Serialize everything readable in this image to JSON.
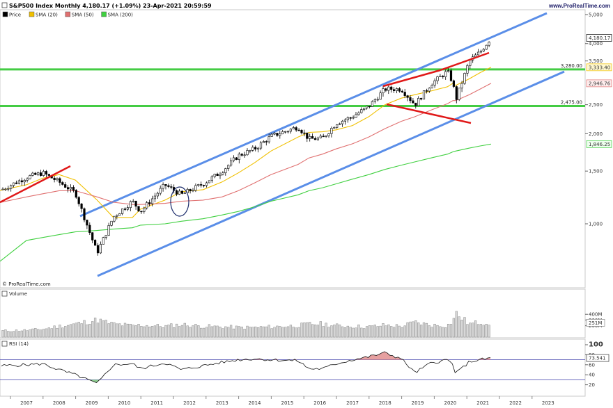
{
  "header": {
    "title": "S&P500 Index Monthly 4,180.17 (+1.09%) 23-Apr-2021 20:59:59",
    "brand": "www.ProRealTime.com",
    "watermark": "© ProRealTime.com"
  },
  "legend": [
    {
      "label": "Price",
      "color": "#000000"
    },
    {
      "label": "SMA (20)",
      "color": "#f0c000"
    },
    {
      "label": "SMA (50)",
      "color": "#e07070"
    },
    {
      "label": "SMA (200)",
      "color": "#40d040"
    }
  ],
  "price_axis": {
    "ticks": [
      {
        "label": "5,000",
        "value": 5000
      },
      {
        "label": "4,000",
        "value": 4000
      },
      {
        "label": "3,500",
        "value": 3500
      },
      {
        "label": "2,500",
        "value": 2500
      },
      {
        "label": "2,000",
        "value": 2000
      },
      {
        "label": "1,500",
        "value": 1500
      },
      {
        "label": "1,000",
        "value": 1000
      }
    ],
    "badges": [
      {
        "label": "4,180.17",
        "value": 4180.17,
        "bg": "#ffffff",
        "fg": "#000000",
        "border": "#000000"
      },
      {
        "label": "3,333.40",
        "value": 3333.4,
        "bg": "#fff8d0",
        "fg": "#b09000",
        "border": "#f0c000"
      },
      {
        "label": "2,946.76",
        "value": 2946.76,
        "bg": "#ffeeee",
        "fg": "#c04040",
        "border": "#e07070"
      },
      {
        "label": "1,846.25",
        "value": 1846.25,
        "bg": "#eeffee",
        "fg": "#209020",
        "border": "#40d040"
      }
    ],
    "levels": [
      {
        "label": "3,280.00",
        "value": 3280
      },
      {
        "label": "2,475.00",
        "value": 2475
      }
    ]
  },
  "volume_panel": {
    "title": "Volume",
    "ticks": [
      "400M",
      "300M",
      "200M"
    ],
    "last_label": "251M"
  },
  "rsi_panel": {
    "title": "RSI (14)",
    "ticks": [
      "100",
      "80",
      "60",
      "40",
      "20"
    ],
    "last_label": "73.541",
    "upper": 70,
    "lower": 30
  },
  "time_axis": [
    "2007",
    "2008",
    "2009",
    "2010",
    "2011",
    "2012",
    "2013",
    "2014",
    "2015",
    "2016",
    "2017",
    "2018",
    "2019",
    "2020",
    "2021",
    "2022",
    "2023"
  ],
  "chart_data": {
    "type": "line",
    "title": "S&P500 Index Monthly 4,180.17 (+1.09%) 23-Apr-2021 20:59:59",
    "scale": "log",
    "x": [
      "2007-01",
      "2007-07",
      "2008-01",
      "2008-07",
      "2009-03",
      "2009-09",
      "2010-04",
      "2010-07",
      "2011-04",
      "2011-10",
      "2012-06",
      "2013-01",
      "2013-07",
      "2014-01",
      "2014-07",
      "2015-05",
      "2015-09",
      "2016-02",
      "2016-07",
      "2017-01",
      "2017-07",
      "2018-01",
      "2018-07",
      "2018-12",
      "2019-06",
      "2019-12",
      "2020-02",
      "2020-03",
      "2020-08",
      "2020-12",
      "2021-04"
    ],
    "series": [
      {
        "name": "Price",
        "values": [
          1430,
          1480,
          1380,
          1270,
          800,
          1055,
          1190,
          1100,
          1350,
          1250,
          1360,
          1500,
          1690,
          1780,
          1960,
          2110,
          1920,
          1930,
          2170,
          2280,
          2470,
          2820,
          2820,
          2500,
          2940,
          3230,
          2950,
          2580,
          3500,
          3750,
          4180
        ]
      },
      {
        "name": "SMA (20)",
        "values": [
          1350,
          1420,
          1460,
          1400,
          1200,
          1050,
          1050,
          1120,
          1200,
          1280,
          1300,
          1380,
          1480,
          1600,
          1750,
          1950,
          2020,
          2030,
          2060,
          2130,
          2280,
          2500,
          2630,
          2700,
          2780,
          2870,
          2950,
          2900,
          3050,
          3200,
          3333.4
        ]
      },
      {
        "name": "SMA (50)",
        "values": [
          1230,
          1260,
          1290,
          1290,
          1230,
          1180,
          1160,
          1160,
          1170,
          1190,
          1200,
          1230,
          1290,
          1370,
          1460,
          1580,
          1660,
          1710,
          1780,
          1850,
          1950,
          2080,
          2200,
          2280,
          2400,
          2520,
          2580,
          2580,
          2700,
          2820,
          2946.76
        ]
      },
      {
        "name": "SMA (200)",
        "values": [
          880,
          900,
          920,
          940,
          950,
          960,
          970,
          990,
          1000,
          1020,
          1040,
          1070,
          1100,
          1140,
          1190,
          1250,
          1290,
          1320,
          1360,
          1410,
          1460,
          1520,
          1570,
          1610,
          1660,
          1710,
          1740,
          1750,
          1790,
          1820,
          1846.25
        ]
      }
    ],
    "horizontal_lines": [
      3280,
      2475
    ],
    "volume_m": [
      120,
      140,
      190,
      230,
      300,
      230,
      200,
      210,
      190,
      220,
      190,
      180,
      170,
      170,
      180,
      200,
      230,
      230,
      200,
      190,
      180,
      210,
      190,
      260,
      210,
      200,
      290,
      420,
      230,
      260,
      251
    ],
    "rsi": [
      60,
      62,
      50,
      40,
      22,
      60,
      62,
      52,
      64,
      50,
      58,
      65,
      70,
      72,
      70,
      68,
      52,
      52,
      62,
      70,
      76,
      84,
      72,
      44,
      64,
      70,
      60,
      42,
      66,
      70,
      73.541
    ],
    "ylim": [
      680,
      5100
    ],
    "grid": false
  }
}
